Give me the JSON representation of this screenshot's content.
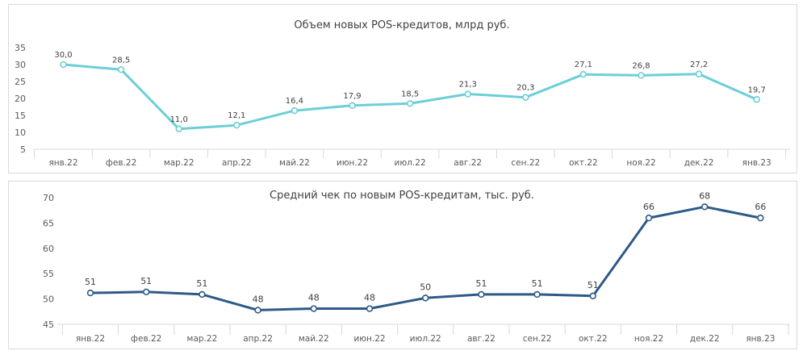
{
  "chart_data": [
    {
      "type": "line",
      "title": "Объем новых POS-кредитов, млрд руб.",
      "categories": [
        "янв.22",
        "фев.22",
        "мар.22",
        "апр.22",
        "май.22",
        "июн.22",
        "июл.22",
        "авг.22",
        "сен.22",
        "окт.22",
        "ноя.22",
        "дек.22",
        "янв.23"
      ],
      "values": [
        30.0,
        28.5,
        11.0,
        12.1,
        16.4,
        17.9,
        18.5,
        21.3,
        20.3,
        27.1,
        26.8,
        27.2,
        19.7
      ],
      "data_labels": [
        "30,0",
        "28,5",
        "11,0",
        "12,1",
        "16,4",
        "17,9",
        "18,5",
        "21,3",
        "20,3",
        "27,1",
        "26,8",
        "27,2",
        "19,7"
      ],
      "ylim": [
        5,
        35
      ],
      "yticks": [
        "5",
        "10",
        "15",
        "20",
        "25",
        "30",
        "35"
      ],
      "ytick_values": [
        5,
        10,
        15,
        20,
        25,
        30,
        35
      ],
      "color": "#6ccfd6",
      "grid": false,
      "legend": "none"
    },
    {
      "type": "line",
      "title": "Средний чек по новым POS-кредитам, тыс. руб.",
      "categories": [
        "янв.22",
        "фев.22",
        "мар.22",
        "апр.22",
        "май.22",
        "июн.22",
        "июл.22",
        "авг.22",
        "сен.22",
        "окт.22",
        "ноя.22",
        "дек.22",
        "янв.23"
      ],
      "values": [
        51.2,
        51.4,
        50.9,
        47.8,
        48.1,
        48.1,
        50.2,
        50.9,
        50.9,
        50.6,
        66.0,
        68.2,
        66.0
      ],
      "data_labels": [
        "51",
        "51",
        "51",
        "48",
        "48",
        "48",
        "50",
        "51",
        "51",
        "51",
        "66",
        "68",
        "66"
      ],
      "ylim": [
        45,
        70
      ],
      "yticks": [
        "45",
        "50",
        "55",
        "60",
        "65",
        "70"
      ],
      "ytick_values": [
        45,
        50,
        55,
        60,
        65,
        70
      ],
      "color": "#2e5a88",
      "grid": false,
      "legend": "none"
    }
  ]
}
